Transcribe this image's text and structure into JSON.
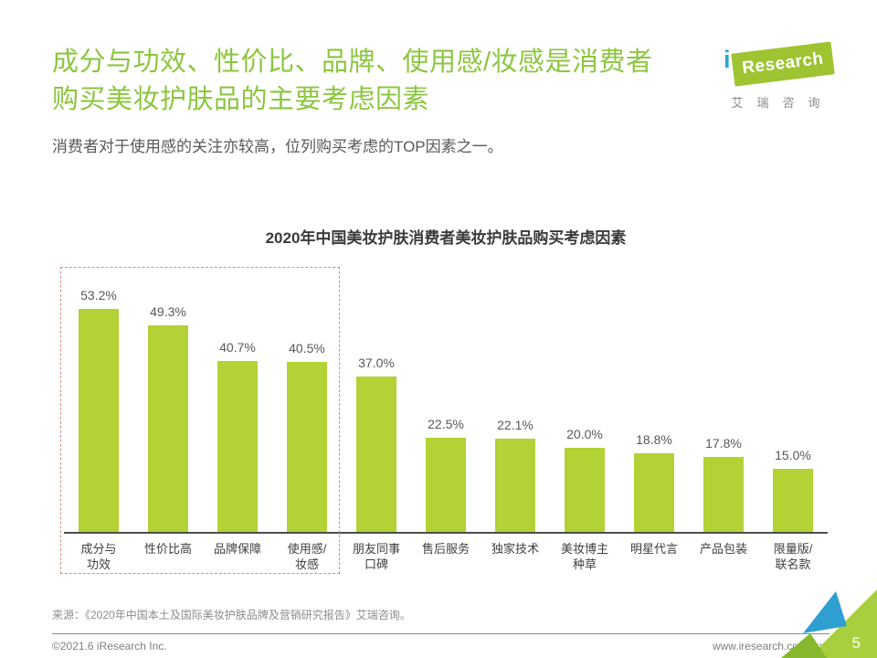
{
  "page": {
    "title_line1": "成分与功效、性价比、品牌、使用感/妆感是消费者",
    "title_line2": "购买美妆护肤品的主要考虑因素",
    "subtitle": "消费者对于使用感的关注亦较高，位列购买考虑的TOP因素之一。",
    "source": "来源：《2020年中国本土及国际美妆护肤品牌及营销研究报告》艾瑞咨询。"
  },
  "logo": {
    "brand_i": "i",
    "brand_text": "Research",
    "brand_cn": "艾瑞咨询"
  },
  "footer": {
    "copyright": "©2021.6 iResearch Inc.",
    "url": "www.iresearch.com.cn",
    "page_number": "5"
  },
  "chart_data": {
    "type": "bar",
    "title": "2020年中国美妆护肤消费者美妆护肤品购买考虑因素",
    "categories": [
      "成分与\n功效",
      "性价比高",
      "品牌保障",
      "使用感/\n妆感",
      "朋友同事\n口碑",
      "售后服务",
      "独家技术",
      "美妆博主\n种草",
      "明星代言",
      "产品包装",
      "限量版/\n联名款"
    ],
    "values": [
      53.2,
      49.3,
      40.7,
      40.5,
      37.0,
      22.5,
      22.1,
      20.0,
      18.8,
      17.8,
      15.0
    ],
    "value_labels": [
      "53.2%",
      "49.3%",
      "40.7%",
      "40.5%",
      "37.0%",
      "22.5%",
      "22.1%",
      "20.0%",
      "18.8%",
      "17.8%",
      "15.0%"
    ],
    "xlabel": "",
    "ylabel": "",
    "ylim": [
      0,
      64
    ],
    "grid": false,
    "legend": false,
    "highlight_group_indices": [
      0,
      1,
      2,
      3
    ],
    "bar_color": "#b2d235"
  },
  "colors": {
    "title_green": "#8cc63f",
    "bar_green": "#b2d235",
    "highlight_dashed": "#d48f93",
    "logo_green": "#9ec431",
    "logo_teal": "#2ba7cf",
    "deco_light_green": "#a8cf3d",
    "deco_dark_green": "#86b72e",
    "deco_blue": "#2f9fd0",
    "baseline": "#4d4d4d"
  }
}
